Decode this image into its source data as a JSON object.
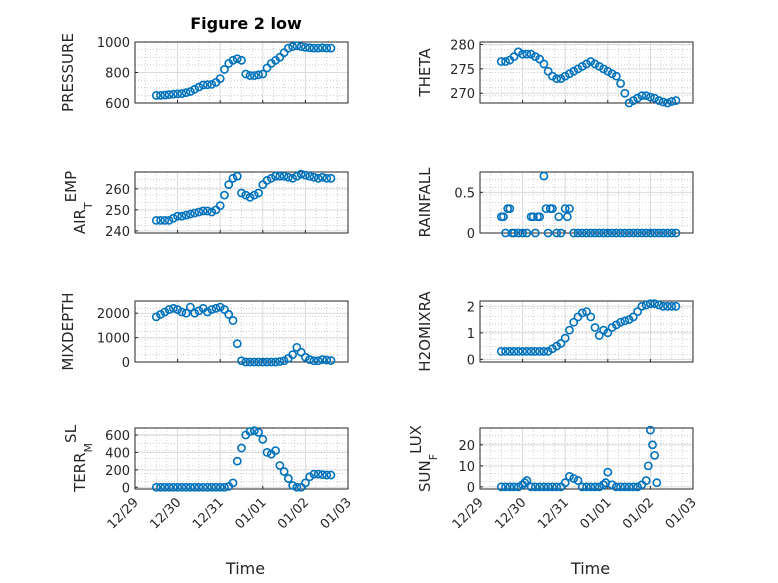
{
  "title": "Figure 2 low",
  "colors": {
    "marker": "#0072BD",
    "axis": "#262626",
    "grid": "#bdbdbd"
  },
  "chart_data": [
    {
      "type": "scatter",
      "id": "pressure",
      "ylabel": "PRESSURE",
      "yticks": [
        600,
        800,
        1000
      ],
      "ylim": [
        600,
        1000
      ],
      "x_tick_labels": [
        "12/29",
        "12/30",
        "12/31",
        "01/01",
        "01/02",
        "01/03"
      ],
      "xlim": [
        0,
        5
      ],
      "x": [
        0.5,
        0.6,
        0.7,
        0.8,
        0.9,
        1.0,
        1.1,
        1.2,
        1.3,
        1.4,
        1.5,
        1.6,
        1.7,
        1.8,
        1.9,
        2.0,
        2.1,
        2.2,
        2.3,
        2.4,
        2.5,
        2.6,
        2.7,
        2.8,
        2.9,
        3.0,
        3.1,
        3.2,
        3.3,
        3.4,
        3.5,
        3.6,
        3.7,
        3.8,
        3.9,
        4.0,
        4.1,
        4.2,
        4.3,
        4.4,
        4.5,
        4.6
      ],
      "y": [
        650,
        650,
        652,
        655,
        658,
        660,
        662,
        668,
        675,
        690,
        705,
        718,
        720,
        722,
        735,
        760,
        820,
        860,
        880,
        890,
        880,
        790,
        780,
        780,
        785,
        790,
        830,
        860,
        880,
        900,
        930,
        960,
        970,
        975,
        970,
        965,
        962,
        960,
        960,
        962,
        960,
        960
      ]
    },
    {
      "type": "scatter",
      "id": "theta",
      "ylabel": "THETA",
      "yticks": [
        270,
        275,
        280
      ],
      "ylim": [
        268,
        280.5
      ],
      "x_tick_labels": [
        "12/29",
        "12/30",
        "12/31",
        "01/01",
        "01/02",
        "01/03"
      ],
      "xlim": [
        0,
        5
      ],
      "x": [
        0.5,
        0.6,
        0.7,
        0.8,
        0.9,
        1.0,
        1.1,
        1.2,
        1.3,
        1.4,
        1.5,
        1.6,
        1.7,
        1.8,
        1.9,
        2.0,
        2.1,
        2.2,
        2.3,
        2.4,
        2.5,
        2.6,
        2.7,
        2.8,
        2.9,
        3.0,
        3.1,
        3.2,
        3.3,
        3.4,
        3.5,
        3.6,
        3.7,
        3.8,
        3.9,
        4.0,
        4.1,
        4.2,
        4.3,
        4.4,
        4.5,
        4.6
      ],
      "y": [
        276.5,
        276.5,
        276.8,
        277.5,
        278.5,
        278,
        278,
        278,
        277.5,
        277,
        276,
        274.5,
        273.5,
        273,
        273,
        273.5,
        274,
        274.5,
        275,
        275.5,
        276,
        276.5,
        276,
        275.5,
        275,
        274.5,
        274,
        273.5,
        272,
        270,
        268,
        268.5,
        269,
        269.5,
        269.5,
        269.2,
        269,
        268.5,
        268.2,
        268,
        268.3,
        268.5
      ]
    },
    {
      "type": "scatter",
      "id": "air-temp",
      "ylabel": "AIR_TEMP",
      "yticks": [
        240,
        250,
        260
      ],
      "ylim": [
        239,
        268
      ],
      "x_tick_labels": [
        "12/29",
        "12/30",
        "12/31",
        "01/01",
        "01/02",
        "01/03"
      ],
      "xlim": [
        0,
        5
      ],
      "x": [
        0.5,
        0.6,
        0.7,
        0.8,
        0.9,
        1.0,
        1.1,
        1.2,
        1.3,
        1.4,
        1.5,
        1.6,
        1.7,
        1.8,
        1.9,
        2.0,
        2.1,
        2.2,
        2.3,
        2.4,
        2.5,
        2.6,
        2.7,
        2.8,
        2.9,
        3.0,
        3.1,
        3.2,
        3.3,
        3.4,
        3.5,
        3.6,
        3.7,
        3.8,
        3.9,
        4.0,
        4.1,
        4.2,
        4.3,
        4.4,
        4.5,
        4.6
      ],
      "y": [
        245,
        245,
        245,
        245,
        246,
        247,
        247,
        247.5,
        248,
        248.5,
        249,
        249.5,
        249.5,
        249,
        250,
        252,
        257,
        262,
        265,
        266,
        258,
        257,
        256,
        257,
        258,
        262,
        264,
        265,
        266,
        266,
        266,
        265.5,
        265,
        266,
        267,
        266.5,
        266,
        265.5,
        265,
        265.5,
        265,
        265
      ]
    },
    {
      "type": "scatter",
      "id": "rainfall",
      "ylabel": "RAINFALL",
      "yticks": [
        0,
        0.5
      ],
      "ylim": [
        0,
        0.75
      ],
      "x_tick_labels": [
        "12/29",
        "12/30",
        "12/31",
        "01/01",
        "01/02",
        "01/03"
      ],
      "xlim": [
        0,
        5
      ],
      "x": [
        0.5,
        0.55,
        0.6,
        0.65,
        0.7,
        0.75,
        0.8,
        0.9,
        1.0,
        1.1,
        1.2,
        1.25,
        1.3,
        1.35,
        1.4,
        1.5,
        1.55,
        1.6,
        1.65,
        1.7,
        1.8,
        1.85,
        1.9,
        2.0,
        2.05,
        2.1,
        2.2,
        2.3,
        2.4,
        2.5,
        2.6,
        2.7,
        2.8,
        2.9,
        3.0,
        3.1,
        3.2,
        3.3,
        3.4,
        3.5,
        3.6,
        3.7,
        3.8,
        3.9,
        4.0,
        4.1,
        4.2,
        4.3,
        4.4,
        4.5,
        4.6
      ],
      "y": [
        0.2,
        0.2,
        0,
        0.3,
        0.3,
        0,
        0,
        0,
        0,
        0,
        0.2,
        0.2,
        0,
        0.2,
        0.2,
        0.7,
        0.3,
        0,
        0.3,
        0.3,
        0,
        0.2,
        0,
        0.3,
        0.2,
        0.3,
        0,
        0,
        0,
        0,
        0,
        0,
        0,
        0,
        0,
        0,
        0,
        0,
        0,
        0,
        0,
        0,
        0,
        0,
        0,
        0,
        0,
        0,
        0,
        0,
        0
      ]
    },
    {
      "type": "scatter",
      "id": "mixdepth",
      "ylabel": "MIXDEPTH",
      "yticks": [
        0,
        1000,
        2000
      ],
      "ylim": [
        0,
        2500
      ],
      "x_tick_labels": [
        "12/29",
        "12/30",
        "12/31",
        "01/01",
        "01/02",
        "01/03"
      ],
      "xlim": [
        0,
        5
      ],
      "x": [
        0.5,
        0.6,
        0.7,
        0.8,
        0.9,
        1.0,
        1.1,
        1.2,
        1.3,
        1.4,
        1.5,
        1.6,
        1.7,
        1.8,
        1.9,
        2.0,
        2.1,
        2.2,
        2.3,
        2.4,
        2.5,
        2.6,
        2.7,
        2.8,
        2.9,
        3.0,
        3.1,
        3.2,
        3.3,
        3.4,
        3.5,
        3.6,
        3.7,
        3.8,
        3.9,
        4.0,
        4.1,
        4.2,
        4.3,
        4.4,
        4.5,
        4.6
      ],
      "y": [
        1850,
        1950,
        2050,
        2150,
        2200,
        2150,
        2050,
        2000,
        2250,
        2000,
        2100,
        2200,
        2050,
        2150,
        2200,
        2250,
        2150,
        1950,
        1700,
        750,
        50,
        0,
        0,
        0,
        0,
        0,
        0,
        0,
        0,
        20,
        50,
        150,
        300,
        600,
        400,
        200,
        100,
        50,
        50,
        100,
        80,
        60
      ]
    },
    {
      "type": "scatter",
      "id": "h2omixra",
      "ylabel": "H2OMIXRA",
      "yticks": [
        0,
        1,
        2
      ],
      "ylim": [
        -0.1,
        2.2
      ],
      "x_tick_labels": [
        "12/29",
        "12/30",
        "12/31",
        "01/01",
        "01/02",
        "01/03"
      ],
      "xlim": [
        0,
        5
      ],
      "x": [
        0.5,
        0.6,
        0.7,
        0.8,
        0.9,
        1.0,
        1.1,
        1.2,
        1.3,
        1.4,
        1.5,
        1.6,
        1.7,
        1.8,
        1.9,
        2.0,
        2.1,
        2.2,
        2.3,
        2.4,
        2.5,
        2.6,
        2.7,
        2.8,
        2.9,
        3.0,
        3.1,
        3.2,
        3.3,
        3.4,
        3.5,
        3.6,
        3.7,
        3.8,
        3.9,
        4.0,
        4.1,
        4.2,
        4.3,
        4.4,
        4.5,
        4.6
      ],
      "y": [
        0.3,
        0.3,
        0.3,
        0.3,
        0.3,
        0.3,
        0.3,
        0.3,
        0.3,
        0.3,
        0.3,
        0.3,
        0.4,
        0.5,
        0.6,
        0.8,
        1.1,
        1.4,
        1.6,
        1.75,
        1.8,
        1.6,
        1.2,
        0.9,
        1.1,
        1.0,
        1.2,
        1.3,
        1.4,
        1.45,
        1.5,
        1.6,
        1.8,
        2.0,
        2.05,
        2.1,
        2.1,
        2.05,
        2.0,
        2.0,
        2.0,
        2.0
      ]
    },
    {
      "type": "scatter",
      "id": "terr-msl",
      "ylabel": "TERR_MSL",
      "yticks": [
        0,
        200,
        400,
        600
      ],
      "ylim": [
        -20,
        680
      ],
      "x_tick_labels": [
        "12/29",
        "12/30",
        "12/31",
        "01/01",
        "01/02",
        "01/03"
      ],
      "xlim": [
        0,
        5
      ],
      "x": [
        0.5,
        0.6,
        0.7,
        0.8,
        0.9,
        1.0,
        1.1,
        1.2,
        1.3,
        1.4,
        1.5,
        1.6,
        1.7,
        1.8,
        1.9,
        2.0,
        2.1,
        2.2,
        2.3,
        2.4,
        2.5,
        2.6,
        2.7,
        2.8,
        2.9,
        3.0,
        3.1,
        3.2,
        3.3,
        3.4,
        3.5,
        3.6,
        3.7,
        3.8,
        3.9,
        4.0,
        4.1,
        4.2,
        4.3,
        4.4,
        4.5,
        4.6
      ],
      "y": [
        0,
        0,
        0,
        0,
        0,
        0,
        0,
        0,
        0,
        0,
        0,
        0,
        0,
        0,
        0,
        0,
        0,
        10,
        50,
        300,
        450,
        600,
        640,
        650,
        630,
        550,
        400,
        380,
        420,
        250,
        180,
        100,
        20,
        0,
        0,
        50,
        120,
        150,
        150,
        145,
        140,
        140
      ]
    },
    {
      "type": "scatter",
      "id": "sun-flux",
      "ylabel": "SUN_FLUX",
      "yticks": [
        0,
        10,
        20
      ],
      "ylim": [
        -1,
        28
      ],
      "x_tick_labels": [
        "12/29",
        "12/30",
        "12/31",
        "01/01",
        "01/02",
        "01/03"
      ],
      "xlim": [
        0,
        5
      ],
      "x": [
        0.5,
        0.6,
        0.7,
        0.8,
        0.9,
        1.0,
        1.05,
        1.1,
        1.2,
        1.3,
        1.4,
        1.5,
        1.6,
        1.7,
        1.8,
        1.9,
        2.0,
        2.1,
        2.2,
        2.3,
        2.4,
        2.5,
        2.6,
        2.7,
        2.8,
        2.9,
        2.95,
        3.0,
        3.1,
        3.2,
        3.3,
        3.4,
        3.5,
        3.6,
        3.7,
        3.8,
        3.9,
        3.95,
        4.0,
        4.05,
        4.1,
        4.15
      ],
      "y": [
        0,
        0,
        0,
        0,
        0,
        1,
        2,
        3,
        0,
        0,
        0,
        0,
        0,
        0,
        0,
        0,
        2,
        5,
        4,
        3,
        0,
        0,
        0,
        0,
        0,
        1,
        2,
        7,
        1,
        0,
        0,
        0,
        0,
        0,
        0,
        1,
        3,
        10,
        27,
        20,
        15,
        2
      ]
    }
  ]
}
